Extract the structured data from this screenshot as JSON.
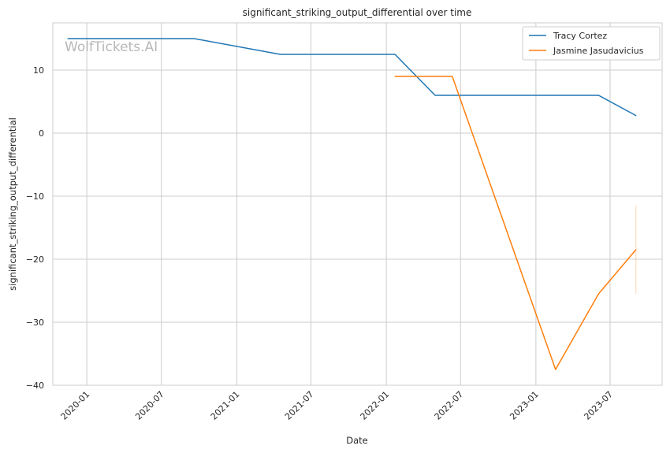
{
  "watermark": "WolfTickets.AI",
  "chart_data": {
    "type": "line",
    "title": "significant_striking_output_differential over time",
    "xlabel": "Date",
    "ylabel": "significant_striking_output_differential",
    "x_type": "date",
    "xlim": [
      "2019-10-10",
      "2023-11-05"
    ],
    "ylim": [
      -40,
      17.5
    ],
    "x_ticks": [
      "2020-01",
      "2020-07",
      "2021-01",
      "2021-07",
      "2022-01",
      "2022-07",
      "2023-01",
      "2023-07"
    ],
    "y_ticks": [
      10,
      0,
      -10,
      -20,
      -30,
      -40
    ],
    "y_tick_labels": [
      "10",
      "0",
      "−10",
      "−20",
      "−30",
      "−40"
    ],
    "grid": true,
    "legend_position": "top-right",
    "series": [
      {
        "name": "Tracy Cortez",
        "color": "#1f77b4",
        "points": [
          {
            "x": "2019-11-16",
            "y": 15.0
          },
          {
            "x": "2020-09-19",
            "y": 15.0
          },
          {
            "x": "2021-04-17",
            "y": 12.5
          },
          {
            "x": "2022-01-22",
            "y": 12.5
          },
          {
            "x": "2022-04-30",
            "y": 6.0
          },
          {
            "x": "2023-06-03",
            "y": 6.0
          },
          {
            "x": "2023-09-02",
            "y": 2.8
          }
        ]
      },
      {
        "name": "Jasmine Jasudavicius",
        "color": "#ff7f0e",
        "points": [
          {
            "x": "2022-01-22",
            "y": 9.0
          },
          {
            "x": "2022-06-11",
            "y": 9.0
          },
          {
            "x": "2023-02-18",
            "y": -37.5
          },
          {
            "x": "2023-06-03",
            "y": -25.5
          },
          {
            "x": "2023-09-02",
            "y": -18.5
          }
        ],
        "error_band": {
          "x": "2023-09-02",
          "low": -25.5,
          "high": -11.5
        }
      }
    ]
  }
}
